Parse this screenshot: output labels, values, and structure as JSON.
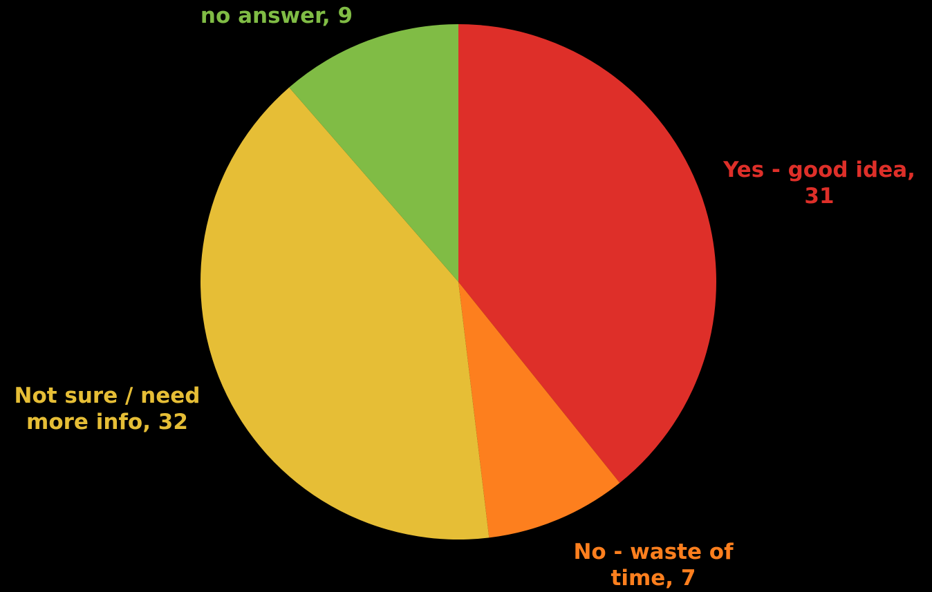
{
  "chart_data": {
    "type": "pie",
    "start_angle_deg": 0,
    "direction": "clockwise",
    "slices": [
      {
        "key": "yes",
        "category": "Yes - good idea",
        "value": 31,
        "color": "#DE2F29",
        "label_lines": [
          "Yes - good idea,",
          "31"
        ]
      },
      {
        "key": "no_waste",
        "category": "No - waste of time",
        "value": 7,
        "color": "#FD7F1E",
        "label_lines": [
          "No - waste of",
          "time, 7"
        ]
      },
      {
        "key": "not_sure",
        "category": "Not sure / need more info",
        "value": 32,
        "color": "#E6BE36",
        "label_lines": [
          "Not sure / need",
          "more info, 32"
        ]
      },
      {
        "key": "no_answer",
        "category": "no answer",
        "value": 9,
        "color": "#80BC45",
        "label_lines": [
          "no answer, 9"
        ]
      }
    ]
  }
}
